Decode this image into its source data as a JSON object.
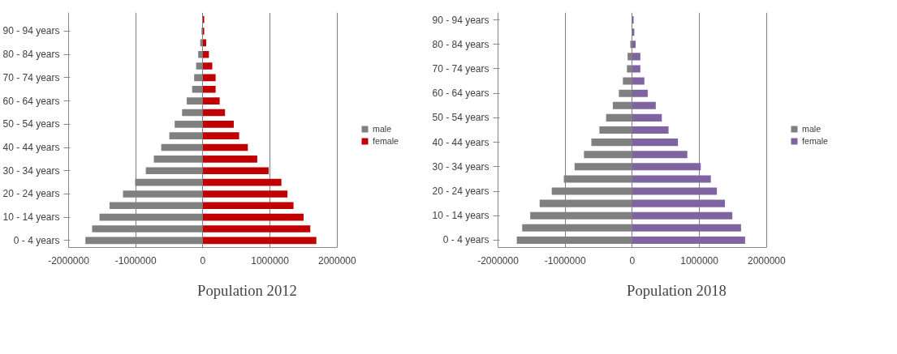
{
  "chart_data": [
    {
      "type": "bar",
      "orientation": "horizontal",
      "stacked": true,
      "title": "Population 2012",
      "categories": [
        null,
        "90 - 94 years",
        null,
        "80 - 84 years",
        null,
        "70 - 74 years",
        null,
        "60 - 64 years",
        null,
        "50 - 54 years",
        null,
        "40 - 44 years",
        null,
        "30 - 34 years",
        null,
        "20 - 24 years",
        null,
        "10 - 14 years",
        null,
        "0 - 4 years"
      ],
      "series": [
        {
          "name": "male",
          "color": "#808080",
          "values": [
            -10000,
            -20000,
            -40000,
            -70000,
            -100000,
            -130000,
            -160000,
            -240000,
            -310000,
            -420000,
            -500000,
            -620000,
            -730000,
            -850000,
            -1010000,
            -1190000,
            -1390000,
            -1540000,
            -1650000,
            -1750000
          ]
        },
        {
          "name": "female",
          "color": "#c00000",
          "values": [
            20000,
            20000,
            50000,
            90000,
            140000,
            190000,
            190000,
            250000,
            330000,
            460000,
            540000,
            670000,
            810000,
            980000,
            1170000,
            1260000,
            1350000,
            1500000,
            1600000,
            1690000
          ]
        }
      ],
      "xlim": [
        -2000000,
        2000000
      ],
      "xticks": [
        -2000000,
        -1000000,
        0,
        1000000,
        2000000
      ],
      "grid": "x",
      "legend": "right"
    },
    {
      "type": "bar",
      "orientation": "horizontal",
      "stacked": true,
      "title": "Population 2018",
      "categories": [
        "90 - 94 years",
        null,
        "80 - 84 years",
        null,
        "70 - 74 years",
        null,
        "60 - 64 years",
        null,
        "50 - 54 years",
        null,
        "40 - 44 years",
        null,
        "30 - 34 years",
        null,
        "20 - 24 years",
        null,
        "10 - 14 years",
        null,
        "0 - 4 years"
      ],
      "series": [
        {
          "name": "male",
          "color": "#808080",
          "values": [
            -10000,
            -10000,
            -30000,
            -70000,
            -80000,
            -140000,
            -200000,
            -290000,
            -390000,
            -490000,
            -610000,
            -720000,
            -860000,
            -1020000,
            -1200000,
            -1380000,
            -1520000,
            -1640000,
            -1720000
          ]
        },
        {
          "name": "female",
          "color": "#8064a2",
          "values": [
            20000,
            30000,
            50000,
            120000,
            120000,
            180000,
            230000,
            350000,
            440000,
            540000,
            680000,
            820000,
            1020000,
            1170000,
            1260000,
            1380000,
            1490000,
            1620000,
            1680000
          ]
        }
      ],
      "xlim": [
        -2000000,
        2000000
      ],
      "xticks": [
        -2000000,
        -1000000,
        0,
        1000000,
        2000000
      ],
      "grid": "x",
      "legend": "right"
    }
  ]
}
